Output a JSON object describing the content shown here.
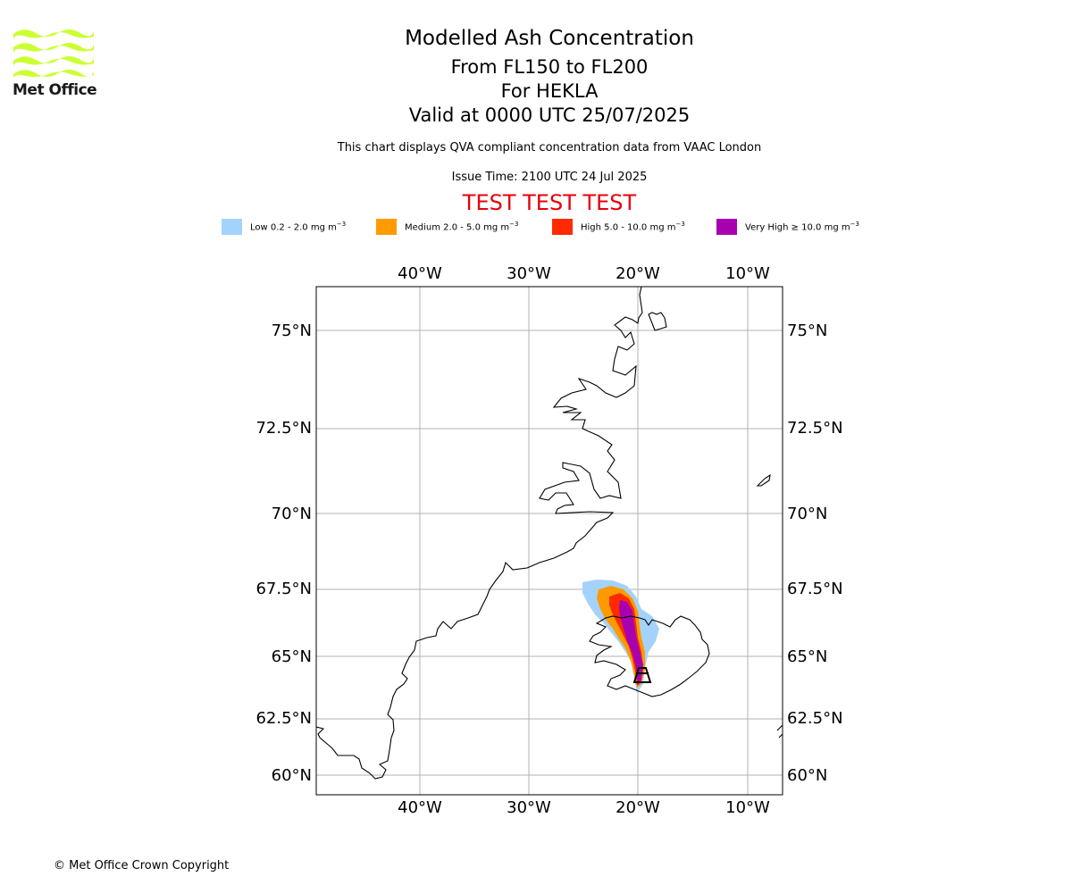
{
  "logo": {
    "text": "Met Office",
    "color": "#ccff33"
  },
  "title": {
    "main": "Modelled Ash Concentration",
    "levels": "From FL150 to FL200",
    "volcano": "For HEKLA",
    "valid": "Valid at 0000 UTC 25/07/2025",
    "subtitle": "This chart displays QVA compliant concentration data from VAAC London",
    "issue": "Issue Time: 2100 UTC 24 Jul 2025",
    "test_banner": "TEST TEST TEST"
  },
  "legend": [
    {
      "label": "Low 0.2 - 2.0 mg m",
      "color": "#a3d3fb"
    },
    {
      "label": "Medium 2.0 - 5.0 mg m",
      "color": "#ff9a00"
    },
    {
      "label": "High 5.0 - 10.0 mg m",
      "color": "#ff2a00"
    },
    {
      "label": "Very High ≥ 10.0 mg m",
      "color": "#a800b0"
    }
  ],
  "legend_unit_exp": "−3",
  "map": {
    "lon_ticks": [
      "40°W",
      "30°W",
      "20°W",
      "10°W"
    ],
    "lat_ticks": [
      "75°N",
      "72.5°N",
      "70°N",
      "67.5°N",
      "65°N",
      "62.5°N",
      "60°N"
    ],
    "volcano_marker": "hekla-marker"
  },
  "copyright": "© Met Office Crown Copyright"
}
